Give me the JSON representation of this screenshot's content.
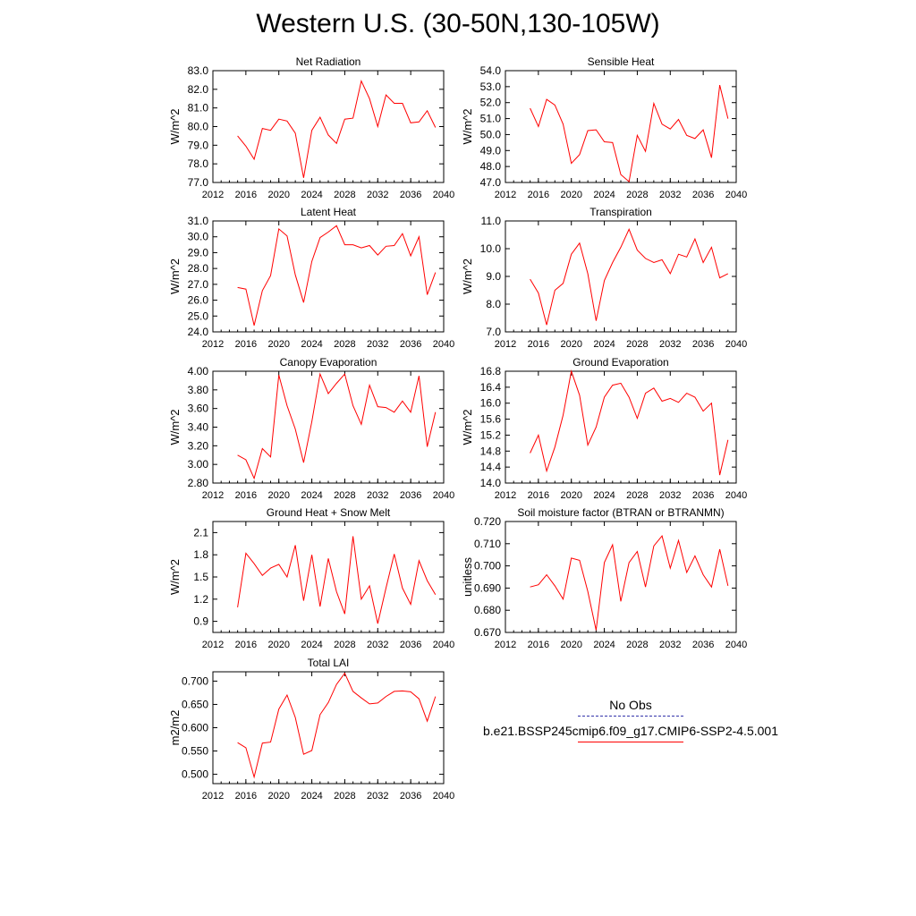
{
  "title": "Western U.S. (30-50N,130-105W)",
  "legend": {
    "obs_label": "No Obs",
    "model_label": "b.e21.BSSP245cmip6.f09_g17.CMIP6-SSP2-4.5.001",
    "obs_color": "#3333aa",
    "model_color": "#ff0000"
  },
  "chart_data": [
    {
      "type": "line",
      "title": "Net Radiation",
      "ylabel": "W/m^2",
      "xlim": [
        2012,
        2040
      ],
      "ylim": [
        77.0,
        83.0
      ],
      "xticks": [
        2012,
        2016,
        2020,
        2024,
        2028,
        2032,
        2036,
        2040
      ],
      "yticks": [
        "77.0",
        "78.0",
        "79.0",
        "80.0",
        "81.0",
        "82.0",
        "83.0"
      ],
      "x": [
        2015,
        2016,
        2017,
        2018,
        2019,
        2020,
        2021,
        2022,
        2023,
        2024,
        2025,
        2026,
        2027,
        2028,
        2029,
        2030,
        2031,
        2032,
        2033,
        2034,
        2035,
        2036,
        2037,
        2038,
        2039
      ],
      "series": [
        {
          "values": [
            79.5,
            78.95,
            78.25,
            79.9,
            79.8,
            80.4,
            80.3,
            79.65,
            77.25,
            79.8,
            80.5,
            79.55,
            79.1,
            80.4,
            80.45,
            82.45,
            81.5,
            80.0,
            81.7,
            81.25,
            81.25,
            80.2,
            80.25,
            80.85,
            79.95
          ]
        }
      ]
    },
    {
      "type": "line",
      "title": "Sensible Heat",
      "ylabel": "W/m^2",
      "xlim": [
        2012,
        2040
      ],
      "ylim": [
        47.0,
        54.0
      ],
      "xticks": [
        2012,
        2016,
        2020,
        2024,
        2028,
        2032,
        2036,
        2040
      ],
      "yticks": [
        "47.0",
        "48.0",
        "49.0",
        "50.0",
        "51.0",
        "52.0",
        "53.0",
        "54.0"
      ],
      "x": [
        2015,
        2016,
        2017,
        2018,
        2019,
        2020,
        2021,
        2022,
        2023,
        2024,
        2025,
        2026,
        2027,
        2028,
        2029,
        2030,
        2031,
        2032,
        2033,
        2034,
        2035,
        2036,
        2037,
        2038,
        2039
      ],
      "series": [
        {
          "values": [
            51.65,
            50.5,
            52.2,
            51.85,
            50.65,
            48.2,
            48.75,
            50.25,
            50.3,
            49.55,
            49.5,
            47.5,
            47.05,
            49.95,
            48.95,
            51.95,
            50.65,
            50.35,
            50.95,
            49.95,
            49.75,
            50.3,
            48.55,
            53.1,
            51.0
          ]
        }
      ]
    },
    {
      "type": "line",
      "title": "Latent Heat",
      "ylabel": "W/m^2",
      "xlim": [
        2012,
        2040
      ],
      "ylim": [
        24.0,
        31.0
      ],
      "xticks": [
        2012,
        2016,
        2020,
        2024,
        2028,
        2032,
        2036,
        2040
      ],
      "yticks": [
        "24.0",
        "25.0",
        "26.0",
        "27.0",
        "28.0",
        "29.0",
        "30.0",
        "31.0"
      ],
      "x": [
        2015,
        2016,
        2017,
        2018,
        2019,
        2020,
        2021,
        2022,
        2023,
        2024,
        2025,
        2026,
        2027,
        2028,
        2029,
        2030,
        2031,
        2032,
        2033,
        2034,
        2035,
        2036,
        2037,
        2038,
        2039
      ],
      "series": [
        {
          "values": [
            26.8,
            26.7,
            24.4,
            26.6,
            27.55,
            30.5,
            30.05,
            27.6,
            25.85,
            28.45,
            29.95,
            30.3,
            30.7,
            29.5,
            29.5,
            29.3,
            29.45,
            28.85,
            29.4,
            29.45,
            30.2,
            28.8,
            30.0,
            26.35,
            27.75
          ]
        }
      ]
    },
    {
      "type": "line",
      "title": "Transpiration",
      "ylabel": "W/m^2",
      "xlim": [
        2012,
        2040
      ],
      "ylim": [
        7.0,
        11.0
      ],
      "xticks": [
        2012,
        2016,
        2020,
        2024,
        2028,
        2032,
        2036,
        2040
      ],
      "yticks": [
        "7.0",
        "8.0",
        "9.0",
        "10.0",
        "11.0"
      ],
      "x": [
        2015,
        2016,
        2017,
        2018,
        2019,
        2020,
        2021,
        2022,
        2023,
        2024,
        2025,
        2026,
        2027,
        2028,
        2029,
        2030,
        2031,
        2032,
        2033,
        2034,
        2035,
        2036,
        2037,
        2038,
        2039
      ],
      "series": [
        {
          "values": [
            8.9,
            8.4,
            7.25,
            8.5,
            8.75,
            9.8,
            10.2,
            9.1,
            7.4,
            8.85,
            9.5,
            10.05,
            10.7,
            9.95,
            9.65,
            9.5,
            9.6,
            9.1,
            9.8,
            9.7,
            10.35,
            9.5,
            10.05,
            8.95,
            9.1
          ]
        }
      ]
    },
    {
      "type": "line",
      "title": "Canopy Evaporation",
      "ylabel": "W/m^2",
      "xlim": [
        2012,
        2040
      ],
      "ylim": [
        2.8,
        4.0
      ],
      "xticks": [
        2012,
        2016,
        2020,
        2024,
        2028,
        2032,
        2036,
        2040
      ],
      "yticks": [
        "2.80",
        "3.00",
        "3.20",
        "3.40",
        "3.60",
        "3.80",
        "4.00"
      ],
      "x": [
        2015,
        2016,
        2017,
        2018,
        2019,
        2020,
        2021,
        2022,
        2023,
        2024,
        2025,
        2026,
        2027,
        2028,
        2029,
        2030,
        2031,
        2032,
        2033,
        2034,
        2035,
        2036,
        2037,
        2038,
        2039
      ],
      "series": [
        {
          "values": [
            3.1,
            3.05,
            2.85,
            3.17,
            3.08,
            3.96,
            3.63,
            3.38,
            3.02,
            3.46,
            3.97,
            3.76,
            3.87,
            3.97,
            3.63,
            3.43,
            3.85,
            3.62,
            3.61,
            3.56,
            3.68,
            3.56,
            3.95,
            3.19,
            3.56
          ]
        }
      ]
    },
    {
      "type": "line",
      "title": "Ground Evaporation",
      "ylabel": "W/m^2",
      "xlim": [
        2012,
        2040
      ],
      "ylim": [
        14.0,
        16.8
      ],
      "xticks": [
        2012,
        2016,
        2020,
        2024,
        2028,
        2032,
        2036,
        2040
      ],
      "yticks": [
        "14.0",
        "14.4",
        "14.8",
        "15.2",
        "15.6",
        "16.0",
        "16.4",
        "16.8"
      ],
      "x": [
        2015,
        2016,
        2017,
        2018,
        2019,
        2020,
        2021,
        2022,
        2023,
        2024,
        2025,
        2026,
        2027,
        2028,
        2029,
        2030,
        2031,
        2032,
        2033,
        2034,
        2035,
        2036,
        2037,
        2038,
        2039
      ],
      "series": [
        {
          "values": [
            14.75,
            15.2,
            14.3,
            14.9,
            15.7,
            16.8,
            16.2,
            14.95,
            15.4,
            16.15,
            16.45,
            16.5,
            16.15,
            15.62,
            16.25,
            16.38,
            16.05,
            16.12,
            16.02,
            16.25,
            16.15,
            15.8,
            16.0,
            14.2,
            15.08
          ]
        }
      ]
    },
    {
      "type": "line",
      "title": "Ground Heat + Snow Melt",
      "ylabel": "W/m^2",
      "xlim": [
        2012,
        2040
      ],
      "ylim": [
        0.75,
        2.25
      ],
      "xticks": [
        2012,
        2016,
        2020,
        2024,
        2028,
        2032,
        2036,
        2040
      ],
      "yticks": [
        "0.9",
        "1.2",
        "1.5",
        "1.8",
        "2.1"
      ],
      "x": [
        2015,
        2016,
        2017,
        2018,
        2019,
        2020,
        2021,
        2022,
        2023,
        2024,
        2025,
        2026,
        2027,
        2028,
        2029,
        2030,
        2031,
        2032,
        2033,
        2034,
        2035,
        2036,
        2037,
        2038,
        2039
      ],
      "series": [
        {
          "values": [
            1.09,
            1.82,
            1.68,
            1.52,
            1.62,
            1.67,
            1.5,
            1.93,
            1.18,
            1.8,
            1.1,
            1.75,
            1.3,
            1.0,
            2.05,
            1.2,
            1.38,
            0.87,
            1.35,
            1.81,
            1.35,
            1.13,
            1.72,
            1.45,
            1.26
          ]
        }
      ]
    },
    {
      "type": "line",
      "title": "Soil moisture factor (BTRAN or BTRANMN)",
      "ylabel": "unitless",
      "xlim": [
        2012,
        2040
      ],
      "ylim": [
        0.67,
        0.72
      ],
      "xticks": [
        2012,
        2016,
        2020,
        2024,
        2028,
        2032,
        2036,
        2040
      ],
      "yticks": [
        "0.670",
        "0.680",
        "0.690",
        "0.700",
        "0.710",
        "0.720"
      ],
      "x": [
        2015,
        2016,
        2017,
        2018,
        2019,
        2020,
        2021,
        2022,
        2023,
        2024,
        2025,
        2026,
        2027,
        2028,
        2029,
        2030,
        2031,
        2032,
        2033,
        2034,
        2035,
        2036,
        2037,
        2038,
        2039
      ],
      "series": [
        {
          "values": [
            0.6905,
            0.6915,
            0.696,
            0.691,
            0.685,
            0.7035,
            0.7025,
            0.6885,
            0.671,
            0.7015,
            0.7095,
            0.684,
            0.7015,
            0.7065,
            0.6905,
            0.709,
            0.7135,
            0.699,
            0.7115,
            0.697,
            0.7045,
            0.696,
            0.6905,
            0.7075,
            0.691
          ]
        }
      ]
    },
    {
      "type": "line",
      "title": "Total LAI",
      "ylabel": "m2/m2",
      "xlim": [
        2012,
        2040
      ],
      "ylim": [
        0.48,
        0.72
      ],
      "xticks": [
        2012,
        2016,
        2020,
        2024,
        2028,
        2032,
        2036,
        2040
      ],
      "yticks": [
        "0.500",
        "0.550",
        "0.600",
        "0.650",
        "0.700"
      ],
      "x": [
        2015,
        2016,
        2017,
        2018,
        2019,
        2020,
        2021,
        2022,
        2023,
        2024,
        2025,
        2026,
        2027,
        2028,
        2029,
        2030,
        2031,
        2032,
        2033,
        2034,
        2035,
        2036,
        2037,
        2038,
        2039
      ],
      "series": [
        {
          "values": [
            0.568,
            0.557,
            0.494,
            0.567,
            0.569,
            0.64,
            0.67,
            0.622,
            0.543,
            0.551,
            0.628,
            0.654,
            0.693,
            0.717,
            0.678,
            0.664,
            0.651,
            0.653,
            0.667,
            0.678,
            0.679,
            0.677,
            0.662,
            0.614,
            0.667
          ]
        }
      ]
    }
  ]
}
